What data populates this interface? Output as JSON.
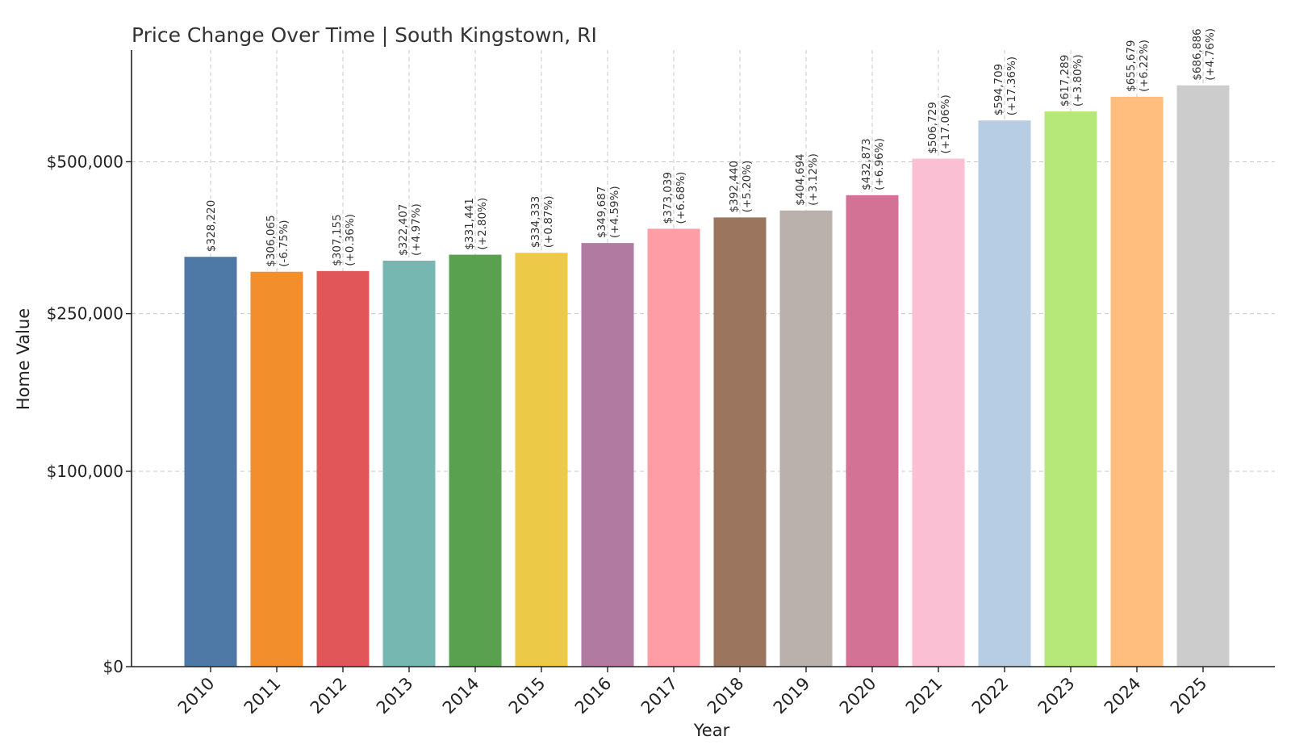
{
  "chart_data": {
    "type": "bar",
    "title": "Price Change Over Time | South Kingstown, RI",
    "xlabel": "Year",
    "ylabel": "Home Value",
    "grid": true,
    "ylim": [
      0,
      700000
    ],
    "yscale": "log1p-like (compressed)",
    "yticks": [
      {
        "value": 0,
        "label": "$0"
      },
      {
        "value": 100000,
        "label": "$100,000"
      },
      {
        "value": 250000,
        "label": "$250,000"
      },
      {
        "value": 500000,
        "label": "$500,000"
      }
    ],
    "categories": [
      "2010",
      "2011",
      "2012",
      "2013",
      "2014",
      "2015",
      "2016",
      "2017",
      "2018",
      "2019",
      "2020",
      "2021",
      "2022",
      "2023",
      "2024",
      "2025"
    ],
    "values": [
      328220,
      306065,
      307155,
      322407,
      331441,
      334333,
      349687,
      373039,
      392440,
      404694,
      432873,
      506729,
      594709,
      617289,
      655679,
      686886
    ],
    "value_labels": [
      "$328,220",
      "$306,065",
      "$307,155",
      "$322,407",
      "$331,441",
      "$334,333",
      "$349,687",
      "$373,039",
      "$392,440",
      "$404,694",
      "$432,873",
      "$506,729",
      "$594,709",
      "$617,289",
      "$655,679",
      "$686,886"
    ],
    "change_labels": [
      "",
      "(-6.75%)",
      "(+0.36%)",
      "(+4.97%)",
      "(+2.80%)",
      "(+0.87%)",
      "(+4.59%)",
      "(+6.68%)",
      "(+5.20%)",
      "(+3.12%)",
      "(+6.96%)",
      "(+17.06%)",
      "(+17.36%)",
      "(+3.80%)",
      "(+6.22%)",
      "(+4.76%)"
    ],
    "colors": [
      "#4e79a7",
      "#f28e2b",
      "#e15759",
      "#76b7b2",
      "#59a14f",
      "#edc948",
      "#b07aa1",
      "#ff9da7",
      "#9c755f",
      "#bab0ac",
      "#d37295",
      "#fabfd2",
      "#b6cde4",
      "#b5e878",
      "#ffbe7d",
      "#cccccc"
    ]
  }
}
